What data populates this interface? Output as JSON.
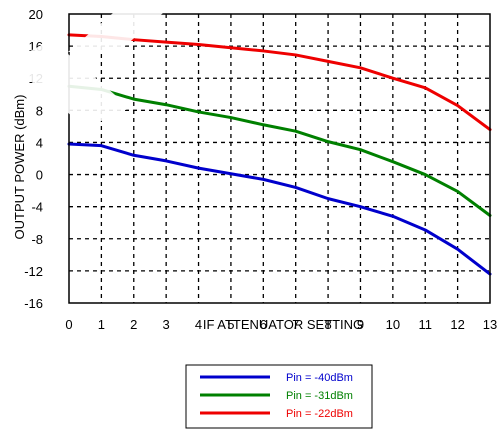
{
  "chart_data": {
    "type": "line",
    "xlabel": "IF ATTENUATOR SETTING",
    "ylabel": "OUTPUT POWER (dBm)",
    "xlim": [
      0,
      13
    ],
    "ylim": [
      -16,
      20
    ],
    "x_ticks": [
      "0",
      "1",
      "2",
      "3",
      "4",
      "5",
      "6",
      "7",
      "8",
      "9",
      "10",
      "11",
      "12",
      "13"
    ],
    "y_ticks": [
      "20",
      "16",
      "12",
      "8",
      "4",
      "0",
      "-4",
      "-8",
      "-12",
      "-16"
    ],
    "grid": true,
    "legend_position": "bottom-center",
    "x": [
      0,
      1,
      2,
      3,
      4,
      5,
      6,
      7,
      8,
      9,
      10,
      11,
      12,
      13
    ],
    "series": [
      {
        "name": "Pin = -40dBm",
        "color": "#0000cc",
        "values": [
          3.8,
          3.6,
          2.4,
          1.7,
          0.8,
          0.1,
          -0.6,
          -1.6,
          -3.0,
          -4.0,
          -5.2,
          -6.9,
          -9.3,
          -12.4
        ]
      },
      {
        "name": "Pin = -31dBm",
        "color": "#008000",
        "values": [
          11.0,
          10.6,
          9.4,
          8.7,
          7.8,
          7.1,
          6.2,
          5.4,
          4.1,
          3.1,
          1.6,
          0.0,
          -2.1,
          -5.1
        ]
      },
      {
        "name": "Pin = -22dBm",
        "color": "#ee0000",
        "values": [
          17.4,
          17.2,
          16.8,
          16.5,
          16.2,
          15.8,
          15.4,
          14.9,
          14.1,
          13.3,
          12.0,
          10.8,
          8.6,
          5.6
        ]
      }
    ]
  }
}
